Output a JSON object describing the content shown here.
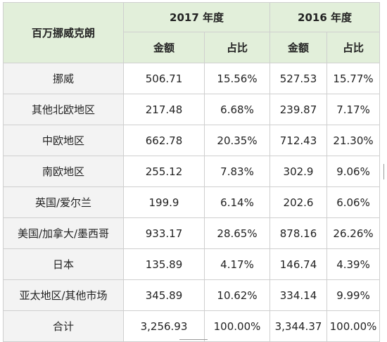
{
  "header": {
    "corner": "百万挪威克朗",
    "years": [
      {
        "label": "2017 年度"
      },
      {
        "label": "2016 年度"
      }
    ],
    "sub": [
      "金额",
      "占比",
      "金额",
      "占比"
    ]
  },
  "rows": [
    {
      "name": "挪威",
      "v2017": "506.71",
      "p2017": "15.56%",
      "v2016": "527.53",
      "p2016": "15.77%"
    },
    {
      "name": "其他北欧地区",
      "v2017": "217.48",
      "p2017": "6.68%",
      "v2016": "239.87",
      "p2016": "7.17%"
    },
    {
      "name": "中欧地区",
      "v2017": "662.78",
      "p2017": "20.35%",
      "v2016": "712.43",
      "p2016": "21.30%"
    },
    {
      "name": "南欧地区",
      "v2017": "255.12",
      "p2017": "7.83%",
      "v2016": "302.9",
      "p2016": "9.06%"
    },
    {
      "name": "英国/爱尔兰",
      "v2017": "199.9",
      "p2017": "6.14%",
      "v2016": "202.6",
      "p2016": "6.06%"
    },
    {
      "name": "美国/加拿大/墨西哥",
      "v2017": "933.17",
      "p2017": "28.65%",
      "v2016": "878.16",
      "p2016": "26.26%"
    },
    {
      "name": "日本",
      "v2017": "135.89",
      "p2017": "4.17%",
      "v2016": "146.74",
      "p2016": "4.39%"
    },
    {
      "name": "亚太地区/其他市场",
      "v2017": "345.89",
      "p2017": "10.62%",
      "v2016": "334.14",
      "p2016": "9.99%"
    },
    {
      "name": "合计",
      "v2017": "3,256.93",
      "p2017": "100.00%",
      "v2016": "3,344.37",
      "p2016": "100.00%"
    }
  ],
  "colors": {
    "header_bg": "#e2efda",
    "label_bg": "#f3f3f3",
    "border": "#cfcfcf"
  }
}
